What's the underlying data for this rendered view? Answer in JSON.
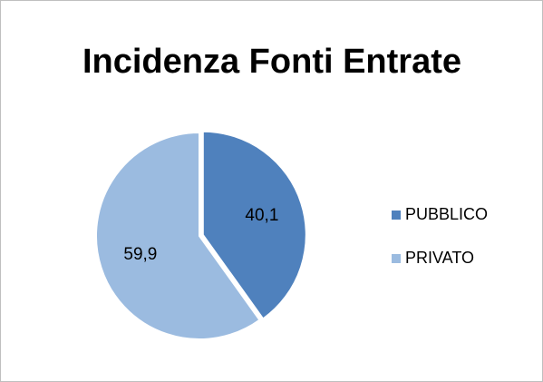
{
  "chart_data": {
    "type": "pie",
    "title": "Incidenza Fonti Entrate",
    "categories": [
      "PUBBLICO",
      "PRIVATO"
    ],
    "values": [
      40.1,
      59.9
    ],
    "value_labels": [
      "40,1",
      "59,9"
    ],
    "colors": [
      "#4f81bd",
      "#9bbbe0"
    ],
    "legend": "right"
  }
}
